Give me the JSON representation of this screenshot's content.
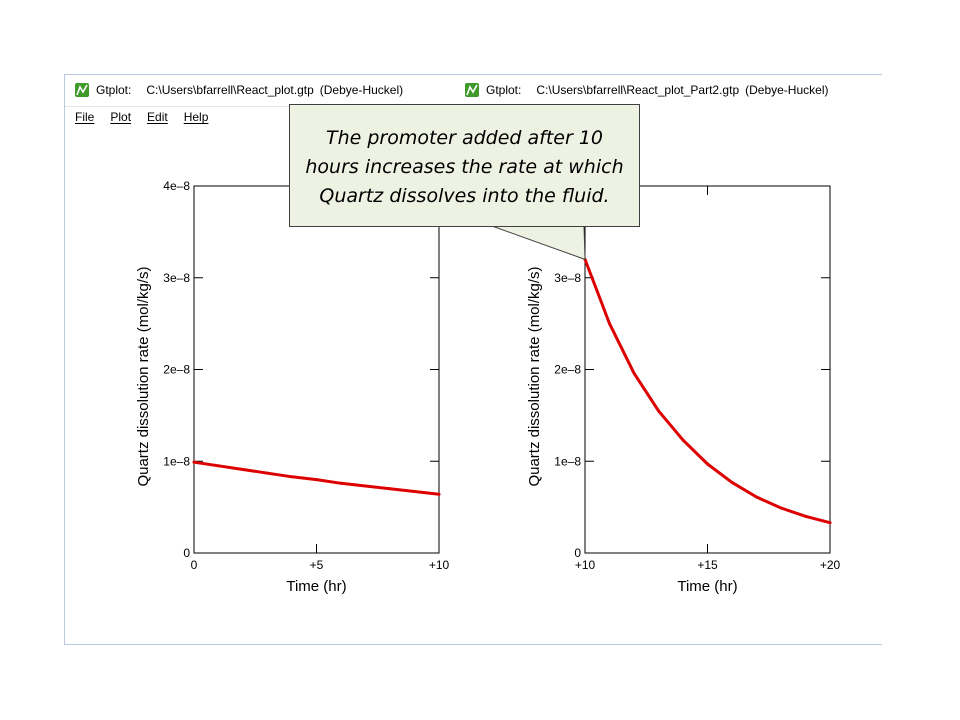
{
  "windows": [
    {
      "app": "Gtplot:",
      "path": "C:\\Users\\bfarrell\\React_plot.gtp",
      "model": "(Debye-Huckel)",
      "menu": [
        "File",
        "Plot",
        "Edit",
        "Help"
      ]
    },
    {
      "app": "Gtplot:",
      "path": "C:\\Users\\bfarrell\\React_plot_Part2.gtp",
      "model": "(Debye-Huckel)"
    }
  ],
  "callout": {
    "text": "The promoter added after 10 hours increases the rate at which Quartz dissolves into the fluid."
  },
  "colors": {
    "series": "#dd0000",
    "callout_bg": "#eef2e2",
    "window_border": "#b9c9de"
  },
  "chart_data": [
    {
      "type": "line",
      "xlabel": "Time (hr)",
      "ylabel": "Quartz dissolution rate (mol/kg/s)",
      "xlim": [
        0,
        10
      ],
      "ylim": [
        0,
        4e-08
      ],
      "xticks": [
        {
          "v": 0,
          "label": "0"
        },
        {
          "v": 5,
          "label": "+5"
        },
        {
          "v": 10,
          "label": "+10"
        }
      ],
      "yticks": [
        {
          "v": 0,
          "label": "0"
        },
        {
          "v": 1e-08,
          "label": "1e–8"
        },
        {
          "v": 2e-08,
          "label": "2e–8"
        },
        {
          "v": 3e-08,
          "label": "3e–8"
        },
        {
          "v": 4e-08,
          "label": "4e–8"
        }
      ],
      "grid": false,
      "series": [
        {
          "x": [
            0,
            1,
            2,
            3,
            4,
            5,
            6,
            7,
            8,
            9,
            10
          ],
          "y": [
            9.9e-09,
            9.5e-09,
            9.1e-09,
            8.7e-09,
            8.3e-09,
            8e-09,
            7.6e-09,
            7.3e-09,
            7e-09,
            6.7e-09,
            6.4e-09
          ]
        }
      ]
    },
    {
      "type": "line",
      "xlabel": "Time (hr)",
      "ylabel": "Quartz dissolution rate (mol/kg/s)",
      "xlim": [
        10,
        20
      ],
      "ylim": [
        0,
        4e-08
      ],
      "xticks": [
        {
          "v": 10,
          "label": "+10"
        },
        {
          "v": 15,
          "label": "+15"
        },
        {
          "v": 20,
          "label": "+20"
        }
      ],
      "yticks": [
        {
          "v": 0,
          "label": "0"
        },
        {
          "v": 1e-08,
          "label": "1e–8"
        },
        {
          "v": 2e-08,
          "label": "2e–8"
        },
        {
          "v": 3e-08,
          "label": "3e–8"
        }
      ],
      "grid": false,
      "series": [
        {
          "x": [
            10,
            10.5,
            11,
            12,
            13,
            14,
            15,
            16,
            17,
            18,
            19,
            20
          ],
          "y": [
            3.2e-08,
            2.85e-08,
            2.5e-08,
            1.96e-08,
            1.55e-08,
            1.23e-08,
            9.7e-09,
            7.7e-09,
            6.1e-09,
            4.9e-09,
            4e-09,
            3.3e-09
          ]
        }
      ]
    }
  ]
}
